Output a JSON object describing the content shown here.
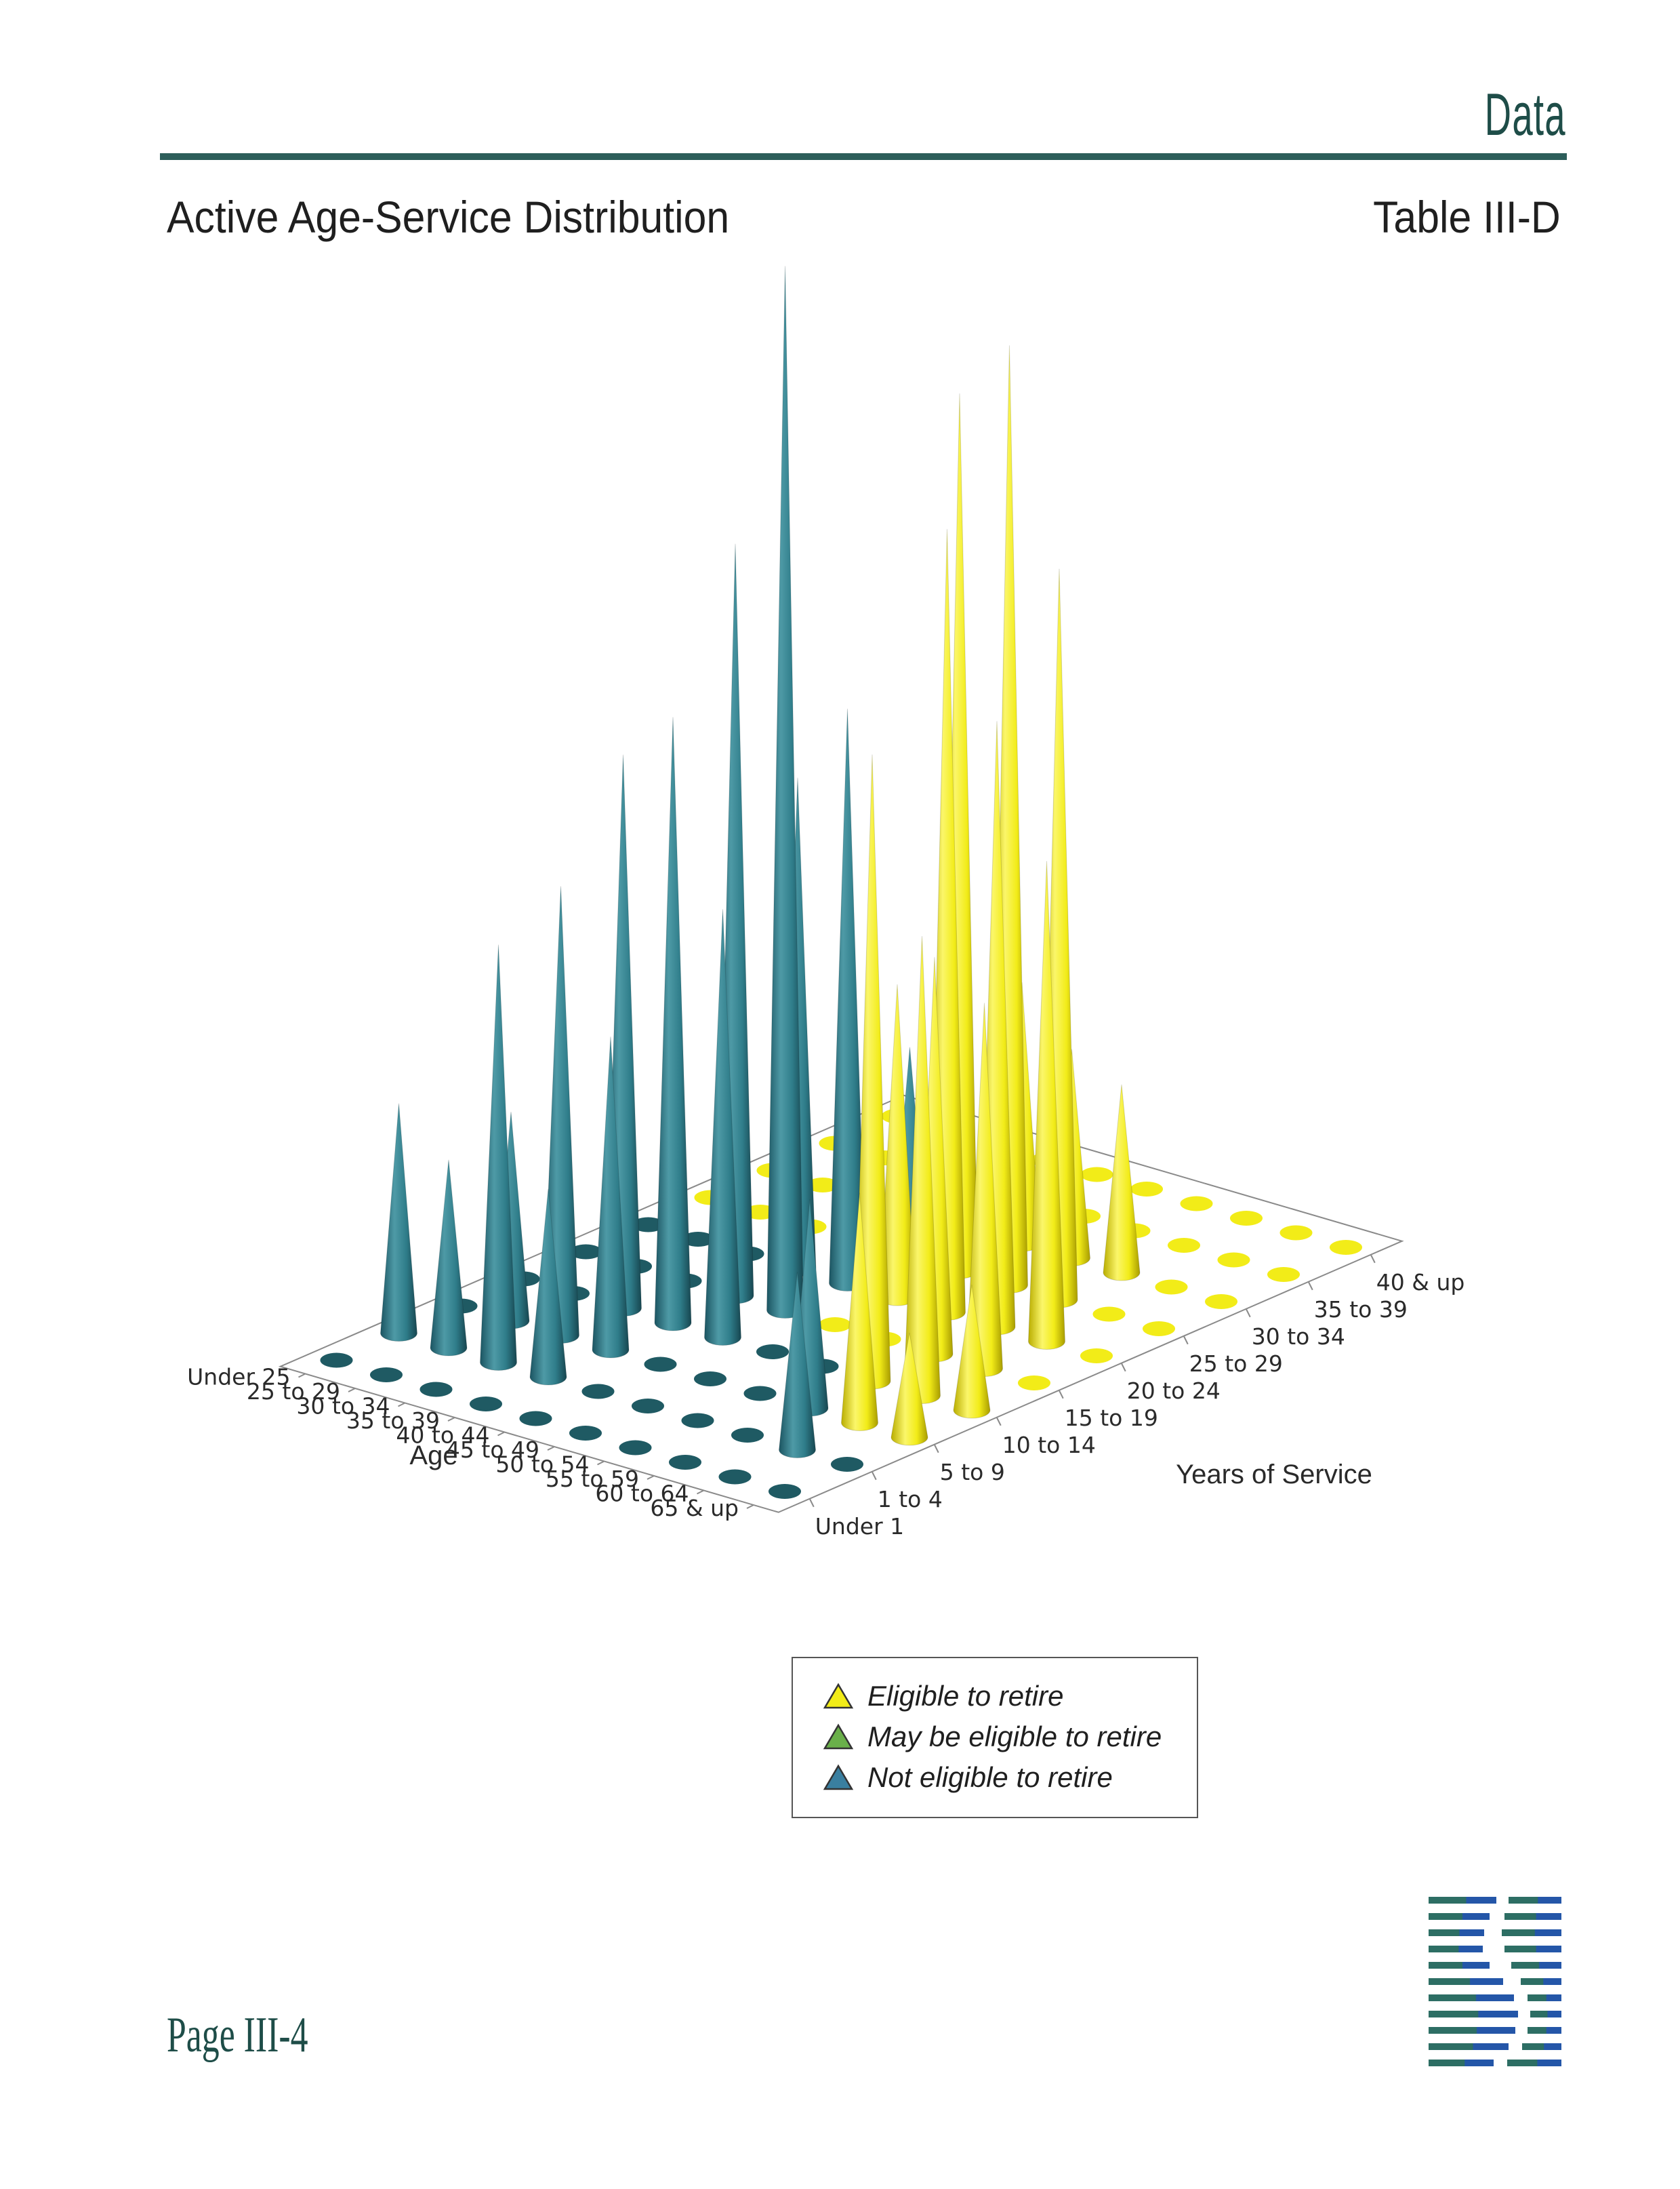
{
  "header": {
    "section_label": "Data",
    "page_title": "Active Age-Service Distribution",
    "table_id": "Table III-D"
  },
  "chart_data": {
    "type": "3d-cone",
    "title": "",
    "age_label": "Age",
    "service_label": "Years of Service",
    "age_groups": [
      "Under 25",
      "25 to 29",
      "30 to 34",
      "35 to 39",
      "40 to 44",
      "45 to 49",
      "50 to 54",
      "55 to 59",
      "60 to 64",
      "65 & up"
    ],
    "service_groups": [
      "Under 1",
      "1 to 4",
      "5 to 9",
      "10 to 14",
      "15 to 19",
      "20 to 24",
      "25 to 29",
      "30 to 34",
      "35 to 39",
      "40 & up"
    ],
    "colors": {
      "eligible": "#f2ec18",
      "may_be_eligible": "#6ab04a",
      "not_eligible": "#2f7d8a"
    },
    "legend_placement": "bottom",
    "legend": [
      {
        "label": "Eligible to retire",
        "status": "eligible"
      },
      {
        "label": "May be eligible to retire",
        "status": "may_be_eligible"
      },
      {
        "label": "Not eligible to retire",
        "status": "not_eligible"
      }
    ],
    "cells": [
      {
        "age": "Under 25",
        "service": "1 to 4",
        "value": 22,
        "status": "not_eligible"
      },
      {
        "age": "25 to 29",
        "service": "1 to 4",
        "value": 18,
        "status": "not_eligible"
      },
      {
        "age": "25 to 29",
        "service": "5 to 9",
        "value": 20,
        "status": "not_eligible"
      },
      {
        "age": "30 to 34",
        "service": "1 to 4",
        "value": 40,
        "status": "not_eligible"
      },
      {
        "age": "30 to 34",
        "service": "5 to 9",
        "value": 43,
        "status": "not_eligible"
      },
      {
        "age": "30 to 34",
        "service": "10 to 14",
        "value": 53,
        "status": "not_eligible"
      },
      {
        "age": "35 to 39",
        "service": "1 to 4",
        "value": 18,
        "status": "not_eligible"
      },
      {
        "age": "35 to 39",
        "service": "5 to 9",
        "value": 30,
        "status": "not_eligible"
      },
      {
        "age": "35 to 39",
        "service": "10 to 14",
        "value": 58,
        "status": "not_eligible"
      },
      {
        "age": "35 to 39",
        "service": "15 to 19",
        "value": 72,
        "status": "not_eligible"
      },
      {
        "age": "35 to 39",
        "service": "20 to 24",
        "value": 47,
        "status": "not_eligible"
      },
      {
        "age": "40 to 44",
        "service": "10 to 14",
        "value": 41,
        "status": "not_eligible"
      },
      {
        "age": "40 to 44",
        "service": "15 to 19",
        "value": 100,
        "status": "not_eligible"
      },
      {
        "age": "40 to 44",
        "service": "20 to 24",
        "value": 55,
        "status": "not_eligible"
      },
      {
        "age": "40 to 44",
        "service": "25 to 29",
        "value": 20,
        "status": "not_eligible"
      },
      {
        "age": "45 to 49",
        "service": "20 to 24",
        "value": 30,
        "status": "eligible"
      },
      {
        "age": "45 to 49",
        "service": "25 to 29",
        "value": 84,
        "status": "eligible"
      },
      {
        "age": "45 to 49",
        "service": "30 to 34",
        "value": 25,
        "status": "eligible"
      },
      {
        "age": "50 to 54",
        "service": "20 to 24",
        "value": 75,
        "status": "eligible"
      },
      {
        "age": "50 to 54",
        "service": "25 to 29",
        "value": 90,
        "status": "eligible"
      },
      {
        "age": "50 to 54",
        "service": "30 to 34",
        "value": 20,
        "status": "eligible"
      },
      {
        "age": "55 to 59",
        "service": "5 to 9",
        "value": 20,
        "status": "not_eligible"
      },
      {
        "age": "55 to 59",
        "service": "10 to 14",
        "value": 60,
        "status": "eligible"
      },
      {
        "age": "55 to 59",
        "service": "15 to 19",
        "value": 38,
        "status": "eligible"
      },
      {
        "age": "55 to 59",
        "service": "20 to 24",
        "value": 58,
        "status": "eligible"
      },
      {
        "age": "55 to 59",
        "service": "25 to 29",
        "value": 70,
        "status": "eligible"
      },
      {
        "age": "55 to 59",
        "service": "30 to 34",
        "value": 18,
        "status": "eligible"
      },
      {
        "age": "60 to 64",
        "service": "1 to 4",
        "value": 17,
        "status": "not_eligible"
      },
      {
        "age": "60 to 64",
        "service": "5 to 9",
        "value": 22,
        "status": "eligible"
      },
      {
        "age": "60 to 64",
        "service": "10 to 14",
        "value": 44,
        "status": "eligible"
      },
      {
        "age": "60 to 64",
        "service": "15 to 19",
        "value": 35,
        "status": "eligible"
      },
      {
        "age": "60 to 64",
        "service": "20 to 24",
        "value": 46,
        "status": "eligible"
      },
      {
        "age": "65 & up",
        "service": "5 to 9",
        "value": 10,
        "status": "eligible"
      },
      {
        "age": "65 & up",
        "service": "10 to 14",
        "value": 12,
        "status": "eligible"
      }
    ]
  },
  "footer": {
    "page_number": "Page III-4"
  }
}
